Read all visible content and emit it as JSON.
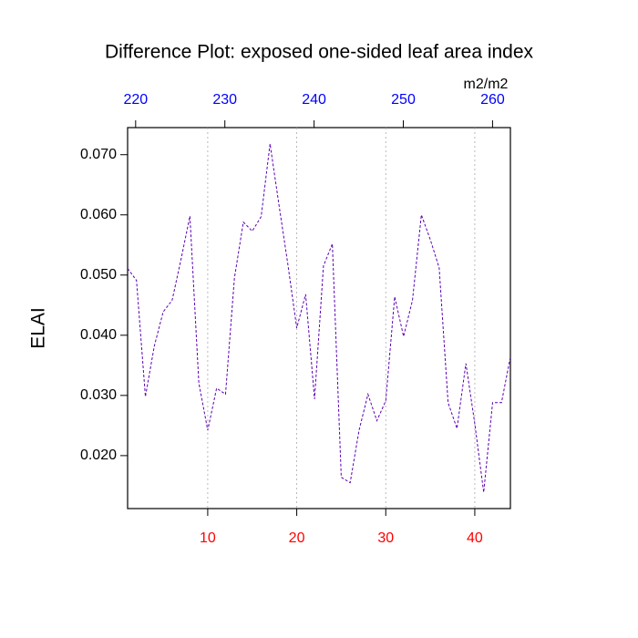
{
  "chart_data": {
    "type": "line",
    "title": "Difference Plot: exposed one-sided leaf area index",
    "y_label": "ELAI",
    "units": "m2/m2",
    "x": [
      1,
      2,
      3,
      4,
      5,
      6,
      7,
      8,
      9,
      10,
      11,
      12,
      13,
      14,
      15,
      16,
      17,
      18,
      19,
      20,
      21,
      22,
      23,
      24,
      25,
      26,
      27,
      28,
      29,
      30,
      31,
      32,
      33,
      34,
      35,
      36,
      37,
      38,
      39,
      40,
      41,
      42,
      43,
      44
    ],
    "series": [
      {
        "color": "#5a00b4",
        "values": [
          0.0511,
          0.0491,
          0.0298,
          0.0382,
          0.0439,
          0.0458,
          0.0526,
          0.0598,
          0.0321,
          0.0242,
          0.0312,
          0.0302,
          0.0495,
          0.0588,
          0.0573,
          0.0597,
          0.0718,
          0.0617,
          0.0518,
          0.0412,
          0.0468,
          0.0294,
          0.0515,
          0.0552,
          0.0164,
          0.0155,
          0.0242,
          0.0302,
          0.0258,
          0.0291,
          0.0464,
          0.0398,
          0.0458,
          0.06,
          0.0559,
          0.0512,
          0.0288,
          0.0245,
          0.0353,
          0.0253,
          0.0139,
          0.0288,
          0.0288,
          0.0364
        ]
      }
    ],
    "xlim": [
      1,
      44
    ],
    "xticks": [
      10,
      20,
      30,
      40
    ],
    "xtick_color": "red",
    "x2lim": [
      219.1,
      262.0
    ],
    "x2ticks": [
      220,
      230,
      240,
      250,
      260
    ],
    "x2tick_color": "blue",
    "ylim": [
      0.0112,
      0.0745
    ],
    "yticks": [
      {
        "value": 0.02,
        "label": "0.020"
      },
      {
        "value": 0.03,
        "label": "0.030"
      },
      {
        "value": 0.04,
        "label": "0.040"
      },
      {
        "value": 0.05,
        "label": "0.050"
      },
      {
        "value": 0.06,
        "label": "0.060"
      },
      {
        "value": 0.07,
        "label": "0.070"
      }
    ],
    "grid": true,
    "dashed": true
  }
}
